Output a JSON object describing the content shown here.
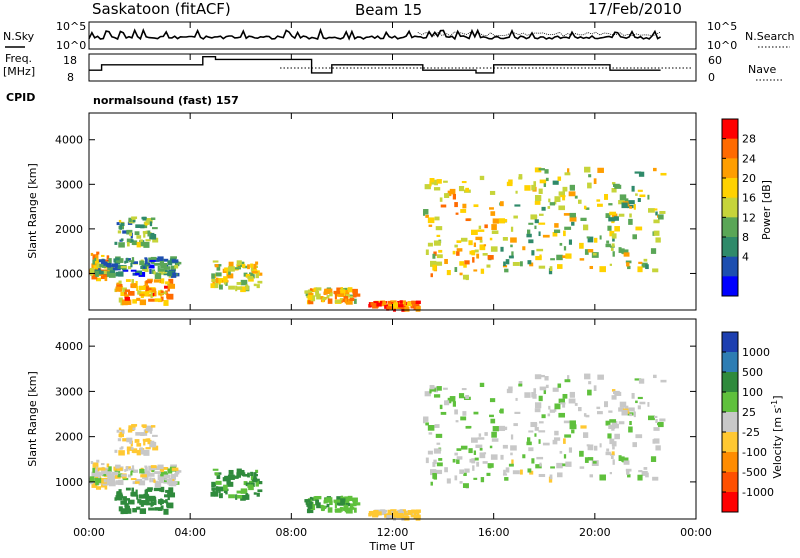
{
  "header": {
    "station": "Saskatoon (fitACF)",
    "beam": "Beam 15",
    "date": "17/Feb/2010"
  },
  "noise_panel": {
    "left_label": "N.Sky",
    "right_label": "N.Search",
    "left_ticks": [
      "10^5",
      "10^0"
    ],
    "right_ticks": [
      "10^5",
      "10^0"
    ]
  },
  "freq_panel": {
    "left_label_1": "Freq.",
    "left_label_2": "[MHz]",
    "right_label": "Nave",
    "left_ticks": [
      "18",
      "8"
    ],
    "right_ticks": [
      "60",
      "0"
    ]
  },
  "cpid": {
    "label": "CPID",
    "program": "normalsound (fast) 157"
  },
  "power_panel": {
    "ylabel": "Slant Range [km]",
    "cbar_label": "Power [dB]",
    "cbar_ticks": [
      "28",
      "24",
      "20",
      "16",
      "12",
      "8",
      "4"
    ],
    "cbar_colors": [
      "#ff0000",
      "#ff6a00",
      "#ff9e00",
      "#ffd200",
      "#c6d43a",
      "#5aa657",
      "#2f8a6a",
      "#1d4fb0",
      "#0000ff"
    ]
  },
  "velocity_panel": {
    "ylabel": "Slant Range [km]",
    "cbar_label": "Velocity [m s^-1]",
    "cbar_ticks": [
      "1000",
      "500",
      "100",
      "25",
      "-25",
      "-100",
      "-500",
      "-1000"
    ],
    "cbar_colors": [
      "#1d3fb0",
      "#2e7db3",
      "#2f8a3c",
      "#5fc03c",
      "#c8c8c8",
      "#ffc832",
      "#ff8c00",
      "#ff5000",
      "#ff0000"
    ]
  },
  "x_axis": {
    "label": "Time UT",
    "ticks": [
      "00:00",
      "04:00",
      "08:00",
      "12:00",
      "16:00",
      "20:00",
      "00:00"
    ]
  },
  "y_ticks": [
    "4000",
    "3000",
    "2000",
    "1000"
  ],
  "chart_data": {
    "type": "heatmap",
    "title": "Saskatoon (fitACF)",
    "x": {
      "label": "Time UT",
      "range_hours": [
        0,
        24
      ],
      "ticks": [
        "00:00",
        "04:00",
        "08:00",
        "12:00",
        "16:00",
        "20:00",
        "00:00"
      ]
    },
    "y": {
      "label": "Slant Range [km]",
      "range_km": [
        180,
        4600
      ],
      "ticks": [
        1000,
        2000,
        3000,
        4000
      ]
    },
    "power_colorbar": {
      "label": "Power [dB]",
      "values": [
        4,
        8,
        12,
        16,
        20,
        24,
        28
      ],
      "range": [
        0,
        32
      ]
    },
    "velocity_colorbar": {
      "label": "Velocity [m s^-1]",
      "values": [
        -1000,
        -500,
        -100,
        -25,
        25,
        100,
        500,
        1000
      ]
    },
    "data_end_hour": 22.6,
    "scatter_regions": [
      {
        "t0": 0.0,
        "t1": 0.8,
        "r0": 900,
        "r1": 1500,
        "power_db": 24,
        "velocity": -20
      },
      {
        "t0": 0.0,
        "t1": 3.5,
        "r0": 1000,
        "r1": 1400,
        "power_db": 10,
        "velocity": 0
      },
      {
        "t0": 1.0,
        "t1": 3.2,
        "r0": 400,
        "r1": 900,
        "power_db": 22,
        "velocity": 150
      },
      {
        "t0": 1.0,
        "t1": 2.5,
        "r0": 1700,
        "r1": 2300,
        "power_db": 12,
        "velocity": -30
      },
      {
        "t0": 4.8,
        "t1": 6.7,
        "r0": 700,
        "r1": 1300,
        "power_db": 18,
        "velocity": 120
      },
      {
        "t0": 8.5,
        "t1": 10.5,
        "r0": 400,
        "r1": 700,
        "power_db": 20,
        "velocity": 80
      },
      {
        "t0": 11.0,
        "t1": 13.0,
        "r0": 250,
        "r1": 400,
        "power_db": 26,
        "velocity": -40
      },
      {
        "t0": 13.2,
        "t1": 16.0,
        "r0": 900,
        "r1": 3200,
        "power_db": 20,
        "velocity": 20
      },
      {
        "t0": 16.2,
        "t1": 22.6,
        "r0": 1100,
        "r1": 3400,
        "power_db": 16,
        "velocity": 10
      }
    ],
    "noise_sky": {
      "range": [
        1,
        100000
      ],
      "scale": "log"
    },
    "frequency_mhz": {
      "range": [
        8,
        18
      ],
      "segments": [
        {
          "t0": 0.0,
          "t1": 0.5,
          "f": 12
        },
        {
          "t0": 0.5,
          "t1": 4.5,
          "f": 14
        },
        {
          "t0": 4.5,
          "t1": 5.0,
          "f": 17
        },
        {
          "t0": 5.0,
          "t1": 8.8,
          "f": 16
        },
        {
          "t0": 8.8,
          "t1": 9.6,
          "f": 11
        },
        {
          "t0": 9.6,
          "t1": 13.2,
          "f": 14
        },
        {
          "t0": 13.2,
          "t1": 15.3,
          "f": 12
        },
        {
          "t0": 15.3,
          "t1": 16.0,
          "f": 11
        },
        {
          "t0": 16.0,
          "t1": 20.6,
          "f": 14
        },
        {
          "t0": 20.6,
          "t1": 22.6,
          "f": 12
        }
      ]
    }
  }
}
